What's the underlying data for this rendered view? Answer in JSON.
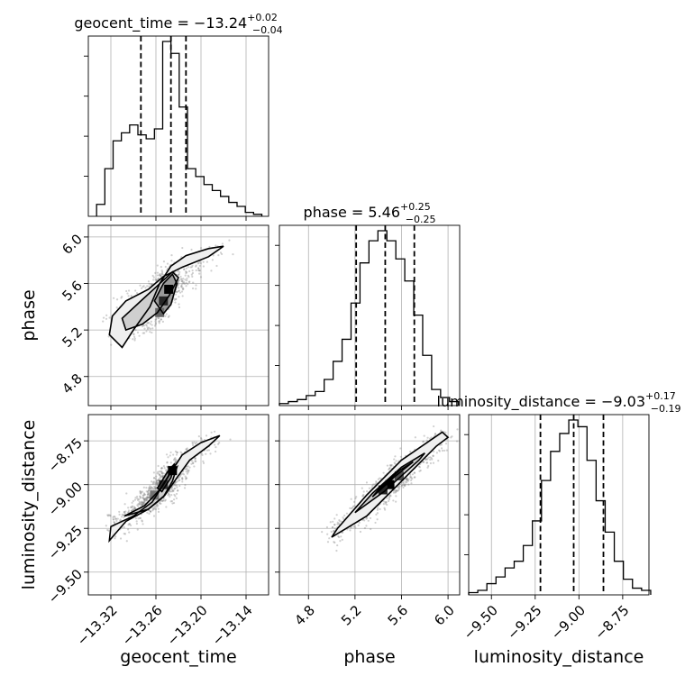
{
  "chart_data": {
    "type": "corner",
    "parameters": [
      "geocent_time",
      "phase",
      "luminosity_distance"
    ],
    "axes": {
      "geocent_time": {
        "range": [
          -13.35,
          -13.11
        ],
        "ticks": [
          -13.32,
          -13.26,
          -13.2,
          -13.14
        ],
        "tick_labels": [
          "−13.32",
          "−13.26",
          "−13.20",
          "−13.14"
        ]
      },
      "phase": {
        "range": [
          4.55,
          6.1
        ],
        "ticks": [
          4.8,
          5.2,
          5.6,
          6.0
        ],
        "tick_labels": [
          "4.8",
          "5.2",
          "5.6",
          "6.0"
        ]
      },
      "luminosity_distance": {
        "range": [
          -9.63,
          -8.6
        ],
        "ticks": [
          -9.5,
          -9.25,
          -9.0,
          -8.75
        ],
        "tick_labels": [
          "−9.50",
          "−9.25",
          "−9.00",
          "−8.75"
        ]
      }
    },
    "marginals": [
      {
        "parameter": "geocent_time",
        "title": "geocent_time = −13.24",
        "title_sup": "+0.02",
        "title_sub": "−0.04",
        "quantiles": [
          -13.28,
          -13.24,
          -13.22
        ],
        "bin_edges": [
          -13.339,
          -13.328,
          -13.317,
          -13.306,
          -13.295,
          -13.284,
          -13.273,
          -13.262,
          -13.251,
          -13.24,
          -13.229,
          -13.218,
          -13.207,
          -13.196,
          -13.185,
          -13.174,
          -13.163,
          -13.152,
          -13.141,
          -13.13,
          -13.119
        ],
        "counts": [
          0.06,
          0.24,
          0.38,
          0.42,
          0.46,
          0.41,
          0.39,
          0.44,
          0.88,
          0.82,
          0.55,
          0.24,
          0.2,
          0.16,
          0.13,
          0.1,
          0.07,
          0.05,
          0.02,
          0.01
        ]
      },
      {
        "parameter": "phase",
        "title": "phase = 5.46",
        "title_sup": "+0.25",
        "title_sub": "−0.25",
        "quantiles": [
          5.21,
          5.46,
          5.71
        ],
        "bin_edges": [
          4.55,
          4.627,
          4.704,
          4.781,
          4.858,
          4.935,
          5.012,
          5.089,
          5.166,
          5.243,
          5.32,
          5.397,
          5.474,
          5.551,
          5.628,
          5.705,
          5.782,
          5.859,
          5.936,
          6.013,
          6.09
        ],
        "counts": [
          0.01,
          0.02,
          0.03,
          0.05,
          0.07,
          0.13,
          0.22,
          0.33,
          0.51,
          0.71,
          0.82,
          0.87,
          0.82,
          0.73,
          0.62,
          0.45,
          0.25,
          0.08,
          0.04,
          0.02
        ]
      },
      {
        "parameter": "luminosity_distance",
        "title": "luminosity_distance = −9.03",
        "title_sup": "+0.17",
        "title_sub": "−0.19",
        "quantiles": [
          -9.22,
          -9.03,
          -8.86
        ],
        "bin_edges": [
          -9.63,
          -9.578,
          -9.526,
          -9.474,
          -9.422,
          -9.37,
          -9.318,
          -9.266,
          -9.214,
          -9.162,
          -9.11,
          -9.058,
          -9.006,
          -8.954,
          -8.902,
          -8.85,
          -8.798,
          -8.746,
          -8.694,
          -8.642,
          -8.59
        ],
        "counts": [
          0.01,
          0.02,
          0.05,
          0.08,
          0.12,
          0.15,
          0.22,
          0.33,
          0.51,
          0.64,
          0.72,
          0.78,
          0.75,
          0.6,
          0.42,
          0.28,
          0.15,
          0.07,
          0.03,
          0.02
        ]
      }
    ],
    "joint": [
      {
        "x": "geocent_time",
        "y": "phase",
        "contours": [
          [
            [
              -13.318,
              5.32
            ],
            [
              -13.3,
              5.45
            ],
            [
              -13.27,
              5.55
            ],
            [
              -13.25,
              5.66
            ],
            [
              -13.225,
              5.74
            ],
            [
              -13.19,
              5.83
            ],
            [
              -13.17,
              5.92
            ],
            [
              -13.19,
              5.9
            ],
            [
              -13.22,
              5.84
            ],
            [
              -13.24,
              5.75
            ],
            [
              -13.255,
              5.6
            ],
            [
              -13.268,
              5.4
            ],
            [
              -13.29,
              5.2
            ],
            [
              -13.305,
              5.05
            ],
            [
              -13.322,
              5.16
            ],
            [
              -13.318,
              5.32
            ]
          ],
          [
            [
              -13.305,
              5.3
            ],
            [
              -13.28,
              5.45
            ],
            [
              -13.258,
              5.58
            ],
            [
              -13.238,
              5.7
            ],
            [
              -13.23,
              5.65
            ],
            [
              -13.242,
              5.5
            ],
            [
              -13.258,
              5.35
            ],
            [
              -13.278,
              5.25
            ],
            [
              -13.3,
              5.2
            ],
            [
              -13.305,
              5.3
            ]
          ],
          [
            [
              -13.262,
              5.45
            ],
            [
              -13.25,
              5.6
            ],
            [
              -13.238,
              5.68
            ],
            [
              -13.232,
              5.6
            ],
            [
              -13.24,
              5.42
            ],
            [
              -13.25,
              5.34
            ],
            [
              -13.262,
              5.45
            ]
          ]
        ],
        "density_peaks": [
          [
            -13.243,
            5.55,
            1.0
          ],
          [
            -13.25,
            5.45,
            0.85
          ],
          [
            -13.255,
            5.35,
            0.6
          ]
        ]
      },
      {
        "x": "geocent_time",
        "y": "luminosity_distance",
        "contours": [
          [
            [
              -13.32,
              -9.24
            ],
            [
              -13.29,
              -9.18
            ],
            [
              -13.265,
              -9.1
            ],
            [
              -13.25,
              -9.0
            ],
            [
              -13.24,
              -8.93
            ],
            [
              -13.225,
              -8.83
            ],
            [
              -13.2,
              -8.76
            ],
            [
              -13.175,
              -8.72
            ],
            [
              -13.19,
              -8.78
            ],
            [
              -13.215,
              -8.86
            ],
            [
              -13.232,
              -8.96
            ],
            [
              -13.248,
              -9.06
            ],
            [
              -13.27,
              -9.14
            ],
            [
              -13.3,
              -9.21
            ],
            [
              -13.322,
              -9.32
            ],
            [
              -13.32,
              -9.24
            ]
          ],
          [
            [
              -13.302,
              -9.18
            ],
            [
              -13.275,
              -9.12
            ],
            [
              -13.255,
              -9.03
            ],
            [
              -13.242,
              -8.94
            ],
            [
              -13.232,
              -8.9
            ],
            [
              -13.238,
              -8.98
            ],
            [
              -13.25,
              -9.07
            ],
            [
              -13.27,
              -9.14
            ],
            [
              -13.302,
              -9.18
            ]
          ],
          [
            [
              -13.258,
              -9.02
            ],
            [
              -13.245,
              -8.93
            ],
            [
              -13.235,
              -8.88
            ],
            [
              -13.24,
              -8.96
            ],
            [
              -13.252,
              -9.04
            ],
            [
              -13.258,
              -9.02
            ]
          ]
        ],
        "density_peaks": [
          [
            -13.238,
            -8.92,
            1.0
          ],
          [
            -13.25,
            -9.0,
            0.8
          ],
          [
            -13.262,
            -9.06,
            0.55
          ]
        ]
      },
      {
        "x": "phase",
        "y": "luminosity_distance",
        "contours": [
          [
            [
              5.0,
              -9.3
            ],
            [
              5.3,
              -9.18
            ],
            [
              5.6,
              -8.98
            ],
            [
              5.9,
              -8.78
            ],
            [
              6.0,
              -8.73
            ],
            [
              5.95,
              -8.7
            ],
            [
              5.6,
              -8.86
            ],
            [
              5.3,
              -9.06
            ],
            [
              5.05,
              -9.25
            ],
            [
              5.0,
              -9.3
            ]
          ],
          [
            [
              5.2,
              -9.16
            ],
            [
              5.45,
              -9.04
            ],
            [
              5.75,
              -8.86
            ],
            [
              5.8,
              -8.82
            ],
            [
              5.6,
              -8.9
            ],
            [
              5.35,
              -9.05
            ],
            [
              5.2,
              -9.16
            ]
          ],
          [
            [
              5.35,
              -9.07
            ],
            [
              5.55,
              -8.95
            ],
            [
              5.7,
              -8.87
            ],
            [
              5.58,
              -8.92
            ],
            [
              5.4,
              -9.03
            ],
            [
              5.35,
              -9.07
            ]
          ]
        ],
        "density_peaks": [
          [
            5.5,
            -9.0,
            1.0
          ],
          [
            5.44,
            -9.03,
            0.85
          ],
          [
            5.58,
            -8.95,
            0.7
          ]
        ]
      }
    ]
  }
}
